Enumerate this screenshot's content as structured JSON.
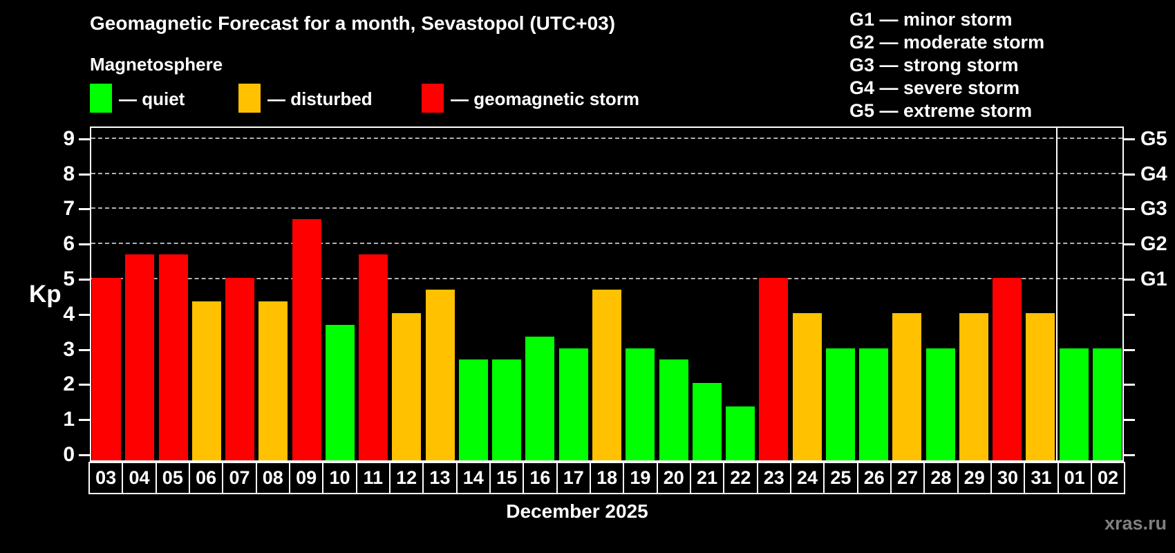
{
  "title": "Geomagnetic Forecast for a month, Sevastopol (UTC+03)",
  "subtitle": "Magnetosphere",
  "legend": {
    "items": [
      {
        "key": "quiet",
        "label": "— quiet"
      },
      {
        "key": "disturbed",
        "label": "— disturbed"
      },
      {
        "key": "storm",
        "label": "— geomagnetic storm"
      }
    ]
  },
  "storm_scale_legend": [
    "G1 — minor storm",
    "G2 — moderate storm",
    "G3 — strong storm",
    "G4 — severe storm",
    "G5 — extreme storm"
  ],
  "colors": {
    "quiet": "#00ff00",
    "disturbed": "#ffc100",
    "storm": "#ff0000",
    "grid": "#b3b3b3",
    "axis": "#ffffff",
    "watermark": "#7f7f7f"
  },
  "axis": {
    "kp_label": "Kp",
    "left_tick_labels": [
      "0",
      "1",
      "2",
      "3",
      "4",
      "5",
      "6",
      "7",
      "8",
      "9"
    ],
    "right_labels": [
      {
        "kp": 5,
        "label": "G1"
      },
      {
        "kp": 6,
        "label": "G2"
      },
      {
        "kp": 7,
        "label": "G3"
      },
      {
        "kp": 8,
        "label": "G4"
      },
      {
        "kp": 9,
        "label": "G5"
      }
    ],
    "xlabel": "December 2025"
  },
  "watermark": "xras.ru",
  "chart_data": {
    "type": "bar",
    "title": "Geomagnetic Forecast for a month, Sevastopol (UTC+03)",
    "xlabel": "December 2025",
    "ylabel": "Kp",
    "ylim": [
      0,
      9
    ],
    "gridlines_kp": [
      5,
      6,
      7,
      8,
      9
    ],
    "grid": "dashed horizontal at G1–G5 levels only",
    "legend_position": "top-left",
    "categories": [
      "03",
      "04",
      "05",
      "06",
      "07",
      "08",
      "09",
      "10",
      "11",
      "12",
      "13",
      "14",
      "15",
      "16",
      "17",
      "18",
      "19",
      "20",
      "21",
      "22",
      "23",
      "24",
      "25",
      "26",
      "27",
      "28",
      "29",
      "30",
      "31",
      "01",
      "02"
    ],
    "values": [
      5,
      5.67,
      5.67,
      4.33,
      5,
      4.33,
      6.67,
      3.67,
      5.67,
      4,
      4.67,
      2.67,
      2.67,
      3.33,
      3,
      4.67,
      3,
      2.67,
      2,
      1.33,
      5,
      4,
      3,
      3,
      4,
      3,
      4,
      5,
      4,
      3,
      3
    ],
    "statuses": [
      "storm",
      "storm",
      "storm",
      "disturbed",
      "storm",
      "disturbed",
      "storm",
      "quiet",
      "storm",
      "disturbed",
      "disturbed",
      "quiet",
      "quiet",
      "quiet",
      "quiet",
      "disturbed",
      "quiet",
      "quiet",
      "quiet",
      "quiet",
      "storm",
      "disturbed",
      "quiet",
      "quiet",
      "disturbed",
      "quiet",
      "disturbed",
      "storm",
      "disturbed",
      "quiet",
      "quiet"
    ],
    "divider_after_category": "31"
  }
}
